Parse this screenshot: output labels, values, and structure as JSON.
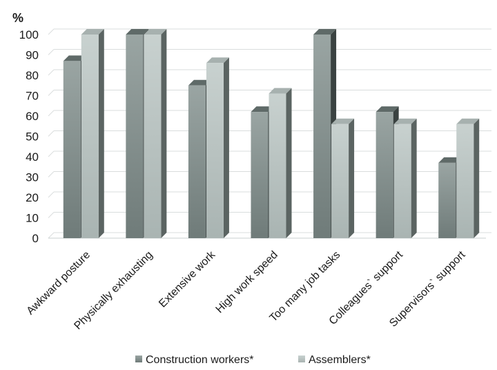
{
  "chart_data": {
    "type": "bar",
    "style": "3d-clustered-column",
    "y_unit_label": "%",
    "title": "",
    "xlabel": "",
    "ylabel": "%",
    "ylim": [
      0,
      100
    ],
    "yticks": [
      0,
      10,
      20,
      30,
      40,
      50,
      60,
      70,
      80,
      90,
      100
    ],
    "grid": true,
    "legend_position": "bottom",
    "categories": [
      "Awkward posture",
      "Physically  exhausting",
      "Extensive work",
      "High work speed",
      "Too many job tasks",
      "Colleagues` support",
      "Supervisors` support"
    ],
    "series": [
      {
        "name": "Construction workers*",
        "color": "#8c9795",
        "values": [
          87,
          100,
          75,
          62,
          100,
          62,
          37
        ]
      },
      {
        "name": "Assemblers*",
        "color": "#bcc6c4",
        "values": [
          100,
          100,
          86,
          71,
          56,
          56,
          56
        ]
      }
    ]
  }
}
